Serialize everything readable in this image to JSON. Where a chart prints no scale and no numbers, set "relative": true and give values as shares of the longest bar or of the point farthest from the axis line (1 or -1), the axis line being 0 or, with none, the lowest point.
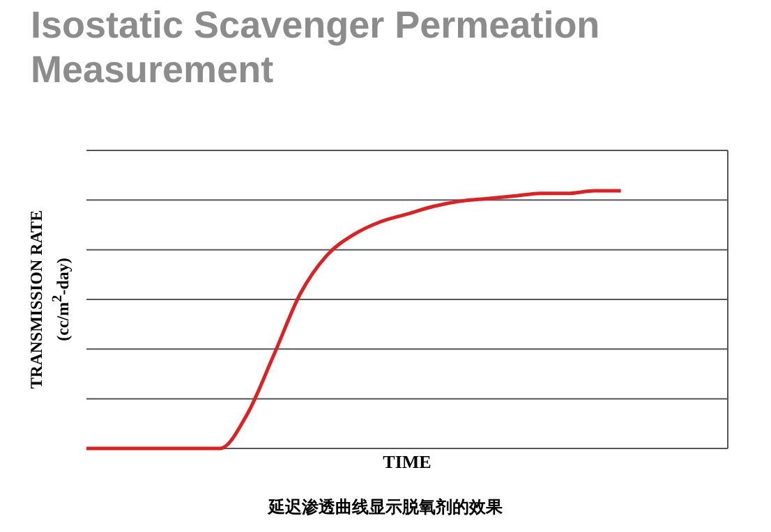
{
  "chart_data": {
    "type": "line",
    "title": "Isostatic Scavenger Permeation Measurement",
    "xlabel": "TIME",
    "ylabel": "TRANSMISSION RATE (cc/m$^{2}$-day)",
    "annotations": [
      "延迟渗透曲线显示脱氧剂的效果"
    ],
    "relative": true,
    "grid": "y",
    "marker": "none",
    "line_style": "solid",
    "categories": [
      null,
      null,
      null,
      null,
      null,
      null,
      null,
      null,
      null,
      null,
      null,
      null,
      null,
      null,
      null,
      null,
      null,
      null,
      null,
      null,
      null,
      null,
      null,
      null,
      null
    ],
    "series": [
      {
        "color": "#e02020",
        "values": [
          0,
          0,
          0,
          0,
          0,
          0,
          0.13,
          0.36,
          0.6,
          0.75,
          0.83,
          0.88,
          0.91,
          0.94,
          0.96,
          0.97,
          0.98,
          0.99,
          0.99,
          1,
          1,
          null,
          null,
          null,
          null
        ]
      }
    ]
  }
}
